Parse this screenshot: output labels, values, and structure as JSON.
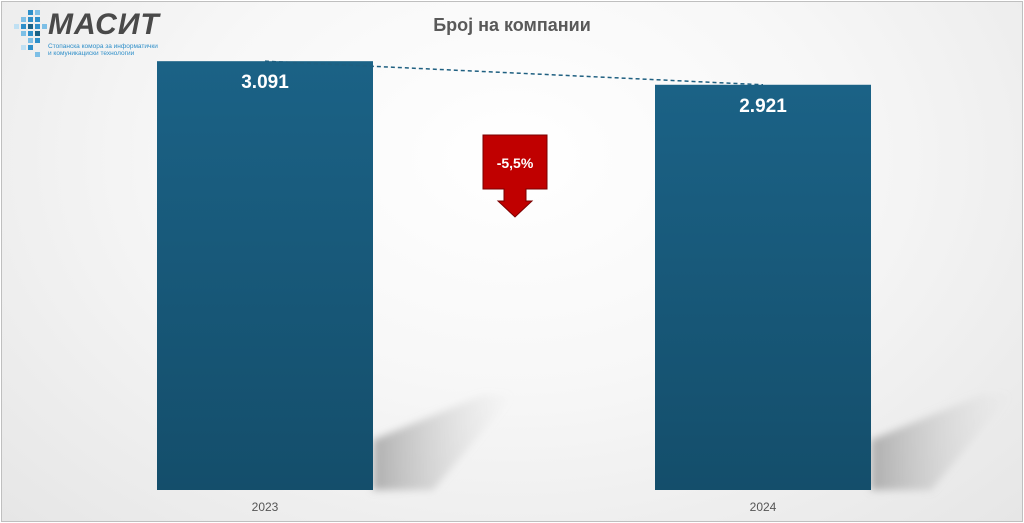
{
  "brand": {
    "name": "МАСИТ",
    "tagline_1": "Стопанска комора за информатички",
    "tagline_2": "и комуникациски технологии"
  },
  "chart_data": {
    "type": "bar",
    "title": "Број на компании",
    "categories": [
      "2023",
      "2024"
    ],
    "values": [
      3091,
      2921
    ],
    "value_labels": [
      "3.091",
      "2.921"
    ],
    "change_label": "-5,5%",
    "trend_line": true,
    "grid": false,
    "legend": "none",
    "ylim": [
      0,
      3150
    ],
    "colors": {
      "bar_top": "#1b6286",
      "bar_bottom": "#144e6b",
      "trend": "#1e5f80",
      "badge": "#c00000",
      "title": "#595959",
      "logo_blue": "#2f8fc9"
    }
  }
}
